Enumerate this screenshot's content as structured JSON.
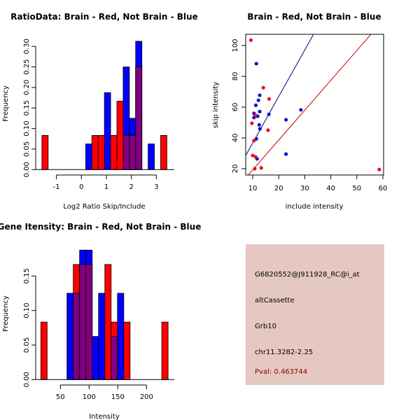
{
  "colors": {
    "brain": "#ff0000",
    "not_brain": "#0000ff",
    "overlap": "#800080",
    "brain_line": "#cc0000",
    "not_brain_line": "#00008b",
    "info_bg": "#e6c8c2",
    "pval_text": "#8b0000"
  },
  "chart_data": [
    {
      "id": "ratio-hist",
      "type": "bar",
      "title": "RatioData: Brain - Red, Not Brain - Blue",
      "xlabel": "Log2 Ratio Skip/Include",
      "ylabel": "Frequency",
      "xticks": [
        -1,
        0,
        1,
        2,
        3
      ],
      "yticks": [
        "0.00",
        "0.05",
        "0.10",
        "0.15",
        "0.20",
        "0.25",
        "0.30"
      ],
      "ylim": [
        0,
        0.3
      ],
      "bin_width": 0.25,
      "series": [
        {
          "name": "Not Brain",
          "color": "blue",
          "bins": [
            {
              "left": 0.17,
              "value": 0.0625
            },
            {
              "left": 0.92,
              "value": 0.1875
            },
            {
              "left": 1.67,
              "value": 0.25
            },
            {
              "left": 1.92,
              "value": 0.125
            },
            {
              "left": 2.17,
              "value": 0.3125
            },
            {
              "left": 2.67,
              "value": 0.0625
            }
          ]
        },
        {
          "name": "Brain",
          "color": "red",
          "bins": [
            {
              "left": -1.58,
              "value": 0.0833
            },
            {
              "left": 0.42,
              "value": 0.0833
            },
            {
              "left": 0.67,
              "value": 0.0833
            },
            {
              "left": 1.17,
              "value": 0.0833
            },
            {
              "left": 1.42,
              "value": 0.1667
            },
            {
              "left": 1.67,
              "value": 0.0833
            },
            {
              "left": 1.92,
              "value": 0.0833
            },
            {
              "left": 2.17,
              "value": 0.25
            },
            {
              "left": 3.17,
              "value": 0.0833
            }
          ]
        }
      ]
    },
    {
      "id": "intensity-scatter",
      "type": "scatter",
      "title": "Brain - Red, Not Brain - Blue",
      "xlabel": "include intensity",
      "ylabel": "skip intensity",
      "xticks": [
        10,
        20,
        30,
        40,
        50,
        60
      ],
      "yticks": [
        20,
        40,
        60,
        80,
        100
      ],
      "xlim": [
        7.3,
        60.2
      ],
      "ylim": [
        15.9,
        107.3
      ],
      "series": [
        {
          "name": "Brain",
          "color": "red",
          "points": [
            [
              9.3,
              103.5
            ],
            [
              14.1,
              72.6
            ],
            [
              16.3,
              65.3
            ],
            [
              10.9,
              54.9
            ],
            [
              9.7,
              49.5
            ],
            [
              15.9,
              45.0
            ],
            [
              10.5,
              38.2
            ],
            [
              10.0,
              28.6
            ],
            [
              11.1,
              27.7
            ],
            [
              10.8,
              20.0
            ],
            [
              13.3,
              20.5
            ],
            [
              58.6,
              19.5
            ]
          ],
          "fit_line": {
            "slope": 1.94,
            "intercept": -0.2
          }
        },
        {
          "name": "Not Brain",
          "color": "blue",
          "points": [
            [
              11.4,
              88.2
            ],
            [
              12.7,
              67.7
            ],
            [
              12.2,
              64.4
            ],
            [
              11.2,
              61.2
            ],
            [
              12.7,
              57.1
            ],
            [
              10.5,
              55.9
            ],
            [
              16.2,
              55.3
            ],
            [
              11.9,
              54.1
            ],
            [
              10.5,
              53.2
            ],
            [
              28.5,
              58.2
            ],
            [
              22.8,
              51.8
            ],
            [
              12.5,
              48.5
            ],
            [
              12.8,
              45.9
            ],
            [
              11.4,
              39.4
            ],
            [
              22.8,
              29.5
            ],
            [
              11.7,
              26.4
            ]
          ],
          "fit_line": {
            "slope": 3.02,
            "intercept": 6.5
          }
        }
      ]
    },
    {
      "id": "gene-intensity-hist",
      "type": "bar",
      "title": "Gene Itensity: Brain - Red, Not Brain - Blue",
      "xlabel": "Intensity",
      "ylabel": "Frequency",
      "xticks": [
        50,
        100,
        150,
        200
      ],
      "yticks": [
        "0.00",
        "0.05",
        "0.10",
        "0.15"
      ],
      "ylim": [
        0,
        0.19
      ],
      "bin_width": 11,
      "series": [
        {
          "name": "Not Brain",
          "color": "blue",
          "bins": [
            {
              "left": 61.4,
              "value": 0.125
            },
            {
              "left": 72.4,
              "value": 0.125
            },
            {
              "left": 83.4,
              "value": 0.1875
            },
            {
              "left": 94.4,
              "value": 0.1875
            },
            {
              "left": 105.4,
              "value": 0.0625
            },
            {
              "left": 116.4,
              "value": 0.125
            },
            {
              "left": 138.4,
              "value": 0.0625
            },
            {
              "left": 149.4,
              "value": 0.125
            }
          ]
        },
        {
          "name": "Brain",
          "color": "red",
          "bins": [
            {
              "left": 15.9,
              "value": 0.0833
            },
            {
              "left": 72.4,
              "value": 0.1667
            },
            {
              "left": 83.4,
              "value": 0.1667
            },
            {
              "left": 94.4,
              "value": 0.1667
            },
            {
              "left": 127.4,
              "value": 0.1667
            },
            {
              "left": 138.4,
              "value": 0.0833
            },
            {
              "left": 160.4,
              "value": 0.0833
            },
            {
              "left": 226.6,
              "value": 0.0833
            }
          ]
        }
      ]
    }
  ],
  "info": {
    "probe_id": "G6820552@J911928_RC@i_at",
    "event_type": "altCassette",
    "gene": "Grb10",
    "location": "chr11.3282-2.25",
    "pval": "Pval: 0.463744"
  }
}
